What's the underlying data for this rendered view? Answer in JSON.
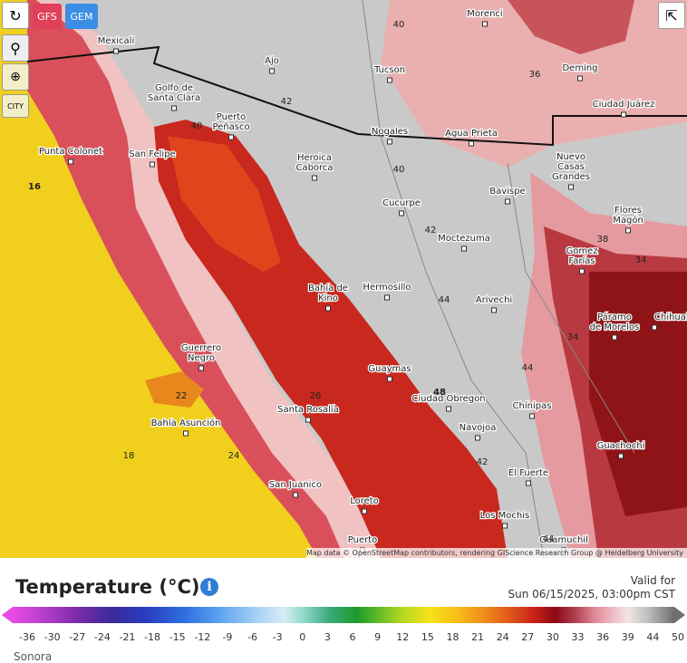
{
  "toolbar": {
    "models": [
      "GFS",
      "GEM"
    ],
    "city_button": "CITY"
  },
  "map": {
    "cities": [
      {
        "lines": [
          "Mexicali"
        ]
      },
      {
        "lines": [
          "Morenci"
        ]
      },
      {
        "lines": [
          "Ajo"
        ]
      },
      {
        "lines": [
          "Tucson"
        ]
      },
      {
        "lines": [
          "Deming"
        ]
      },
      {
        "lines": [
          "Ciudad Juárez"
        ]
      },
      {
        "lines": [
          "Golfo de",
          "Santa Clara"
        ]
      },
      {
        "lines": [
          "Puerto",
          "Peñasco"
        ]
      },
      {
        "lines": [
          "Nogales"
        ]
      },
      {
        "lines": [
          "Agua Prieta"
        ]
      },
      {
        "lines": [
          "Punta Colonet"
        ]
      },
      {
        "lines": [
          "San Felipe"
        ]
      },
      {
        "lines": [
          "Heroica",
          "Caborca"
        ]
      },
      {
        "lines": [
          "Bavispe"
        ]
      },
      {
        "lines": [
          "Nuevo",
          "Casas",
          "Grandes"
        ]
      },
      {
        "lines": [
          "Cucurpe"
        ]
      },
      {
        "lines": [
          "Moctezuma"
        ]
      },
      {
        "lines": [
          "Flores",
          "Magón"
        ]
      },
      {
        "lines": [
          "Gomez",
          "Farías"
        ]
      },
      {
        "lines": [
          "Hermosillo"
        ]
      },
      {
        "lines": [
          "Arivechi"
        ]
      },
      {
        "lines": [
          "Bahía de",
          "Kino"
        ]
      },
      {
        "lines": [
          "Chihuahua"
        ]
      },
      {
        "lines": [
          "Páramo",
          "de Morelos"
        ]
      },
      {
        "lines": [
          "Guerrero",
          "Negro"
        ]
      },
      {
        "lines": [
          "Guaymas"
        ]
      },
      {
        "lines": [
          "Ciudad Obregon"
        ]
      },
      {
        "lines": [
          "Chínipas"
        ]
      },
      {
        "lines": [
          "Santa Rosalía"
        ]
      },
      {
        "lines": [
          "Bahía Asunción"
        ]
      },
      {
        "lines": [
          "Navojoa"
        ]
      },
      {
        "lines": [
          "Guachochi"
        ]
      },
      {
        "lines": [
          "El Fuerte"
        ]
      },
      {
        "lines": [
          "San Juanico"
        ]
      },
      {
        "lines": [
          "Loreto"
        ]
      },
      {
        "lines": [
          "Los Mochis"
        ]
      },
      {
        "lines": [
          "Puerto"
        ]
      },
      {
        "lines": [
          "Guamuchil"
        ]
      }
    ],
    "contour_labels": [
      "40",
      "36",
      "42",
      "40",
      "40",
      "42",
      "38",
      "34",
      "44",
      "16",
      "44",
      "34",
      "22",
      "48",
      "26",
      "18",
      "42",
      "24",
      "44"
    ],
    "attribution": "Map data © OpenStreetMap contributors, rendering GIScience Research Group @ Heidelberg University"
  },
  "legend": {
    "title": "Temperature (°C)",
    "valid_label": "Valid for",
    "valid_time": "Sun 06/15/2025, 03:00pm CST",
    "scale_labels": [
      -36,
      -30,
      -27,
      -24,
      -21,
      -18,
      -15,
      -12,
      -9,
      -6,
      -3,
      0,
      3,
      6,
      9,
      12,
      15,
      18,
      21,
      24,
      27,
      30,
      33,
      36,
      39,
      44,
      50
    ]
  },
  "footer": {
    "region": "Sonora"
  }
}
